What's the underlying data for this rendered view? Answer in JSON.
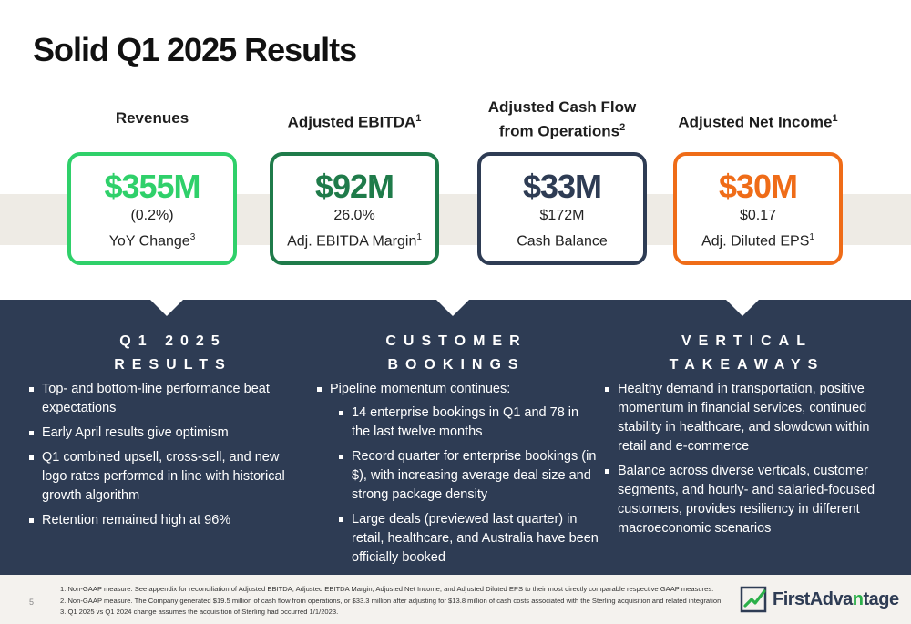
{
  "slide": {
    "title": "Solid Q1 2025 Results",
    "page_number": "5"
  },
  "colors": {
    "bright_green": "#2fd06a",
    "dark_green": "#1f7b4a",
    "navy": "#2e3c54",
    "orange": "#ef6c18",
    "panel": "#2e3c54"
  },
  "metrics": [
    {
      "label": "Revenues",
      "label_sup": "",
      "value": "$355M",
      "line1": "(0.2%)",
      "line2": "YoY Change",
      "line2_sup": "3"
    },
    {
      "label": "Adjusted EBITDA",
      "label_sup": "1",
      "value": "$92M",
      "line1": "26.0%",
      "line2": "Adj. EBITDA Margin",
      "line2_sup": "1"
    },
    {
      "label_line1": "Adjusted Cash Flow",
      "label_line2": "from Operations",
      "label_sup": "2",
      "value": "$33M",
      "line1": "$172M",
      "line2": "Cash Balance",
      "line2_sup": ""
    },
    {
      "label": "Adjusted Net Income",
      "label_sup": "1",
      "value": "$30M",
      "line1": "$0.17",
      "line2": "Adj. Diluted EPS",
      "line2_sup": "1"
    }
  ],
  "columns": [
    {
      "title_line1": "Q1 2025",
      "title_line2": "RESULTS",
      "bullets": [
        "Top- and bottom-line performance beat expectations",
        "Early April results give optimism",
        "Q1 combined upsell, cross-sell, and new logo rates performed in line with historical growth algorithm",
        "Retention remained high at 96%"
      ]
    },
    {
      "title_line1": "CUSTOMER",
      "title_line2": "BOOKINGS",
      "bullet": "Pipeline momentum continues:",
      "sub_bullets": [
        "14 enterprise bookings in Q1 and 78 in the last twelve months",
        "Record quarter for enterprise bookings (in $), with increasing average deal size and strong package density",
        "Large deals (previewed last quarter) in retail, healthcare, and Australia have been officially booked"
      ]
    },
    {
      "title_line1": "VERTICAL",
      "title_line2": "TAKEAWAYS",
      "bullets": [
        "Healthy demand in transportation, positive momentum in financial services, continued stability in healthcare, and slowdown within retail and e-commerce",
        "Balance across diverse verticals, customer segments, and hourly- and salaried-focused customers, provides resiliency in different macroeconomic scenarios"
      ]
    }
  ],
  "footnotes": [
    "1.  Non-GAAP measure. See appendix for reconciliation of Adjusted EBITDA, Adjusted EBITDA Margin, Adjusted Net Income, and Adjusted Diluted EPS to their most directly comparable respective GAAP measures.",
    "2.  Non-GAAP measure. The Company generated $19.5 million of cash flow from operations, or $33.3  million after adjusting for $13.8 million of cash costs associated with the Sterling acquisition and related integration.",
    "3.  Q1 2025 vs Q1 2024 change assumes the acquisition of Sterling had occurred 1/1/2023."
  ],
  "logo": {
    "part1": "First",
    "part2": "Adva",
    "part3": "n",
    "part4": "tage",
    "icon": "checkmark-logo-icon"
  }
}
